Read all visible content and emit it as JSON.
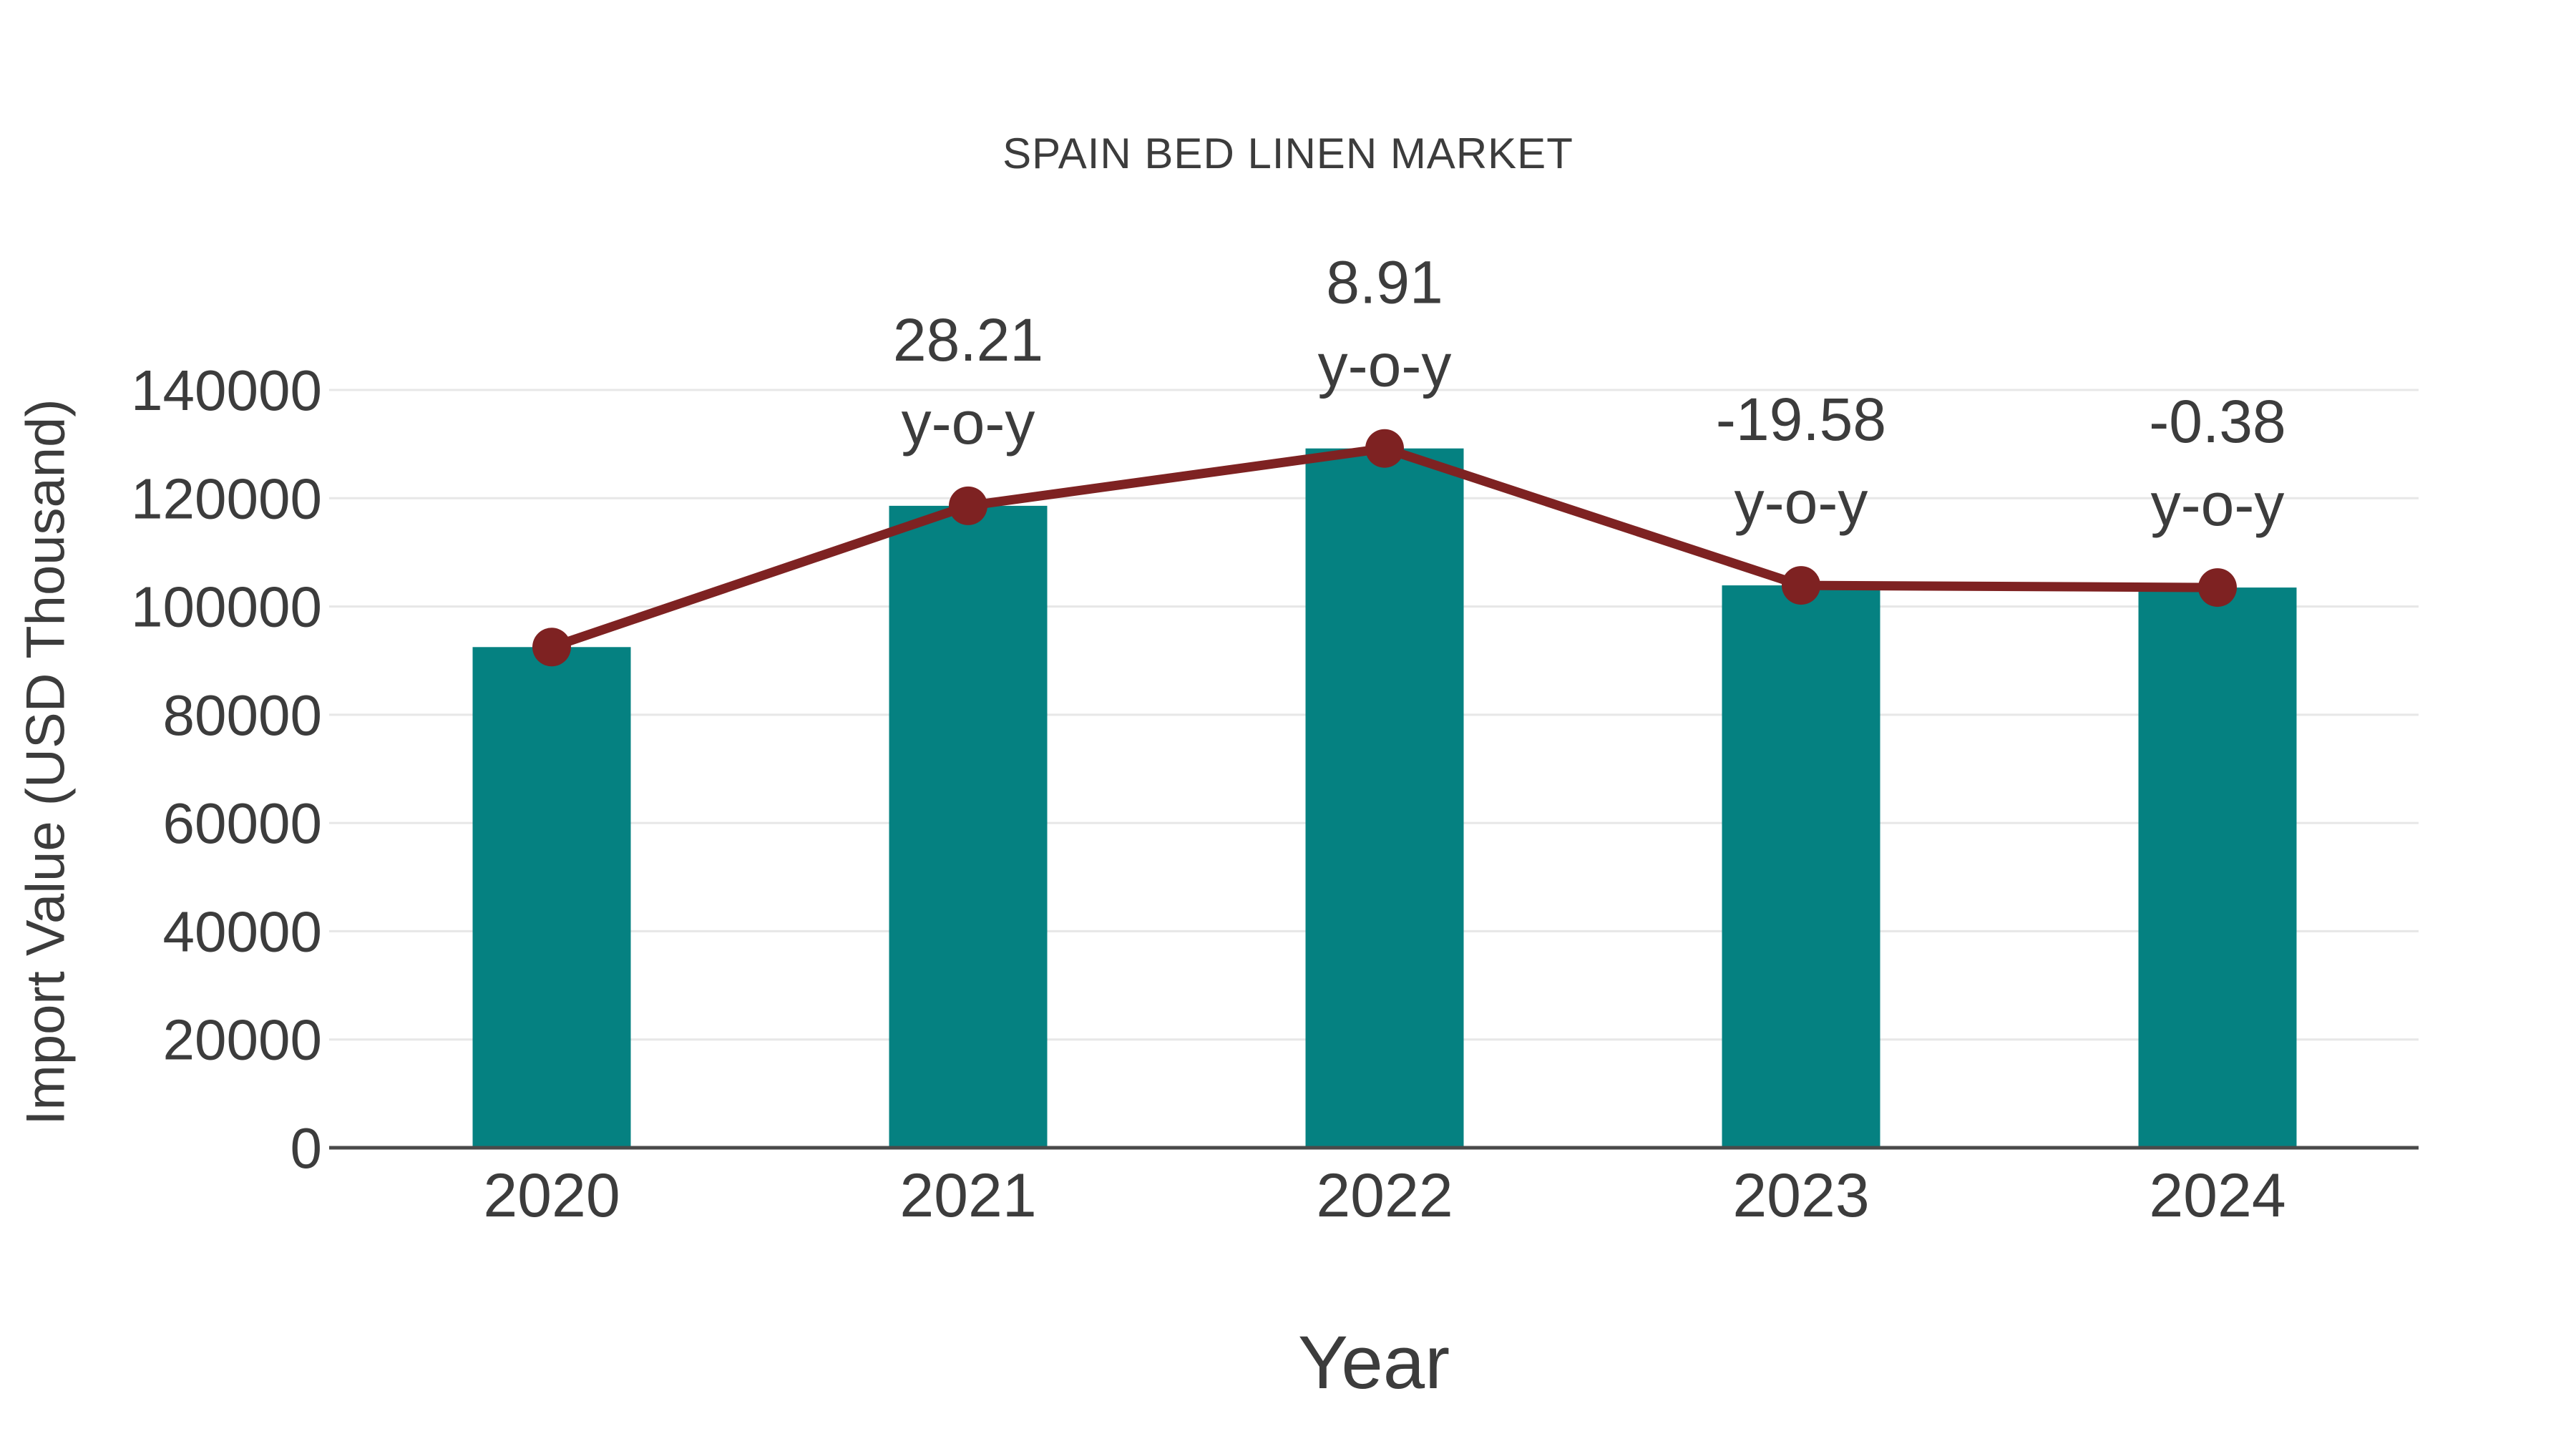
{
  "chart_data": {
    "type": "bar",
    "title": "SPAIN BED LINEN MARKET",
    "xlabel": "Year",
    "ylabel": "Import Value (USD Thousand)",
    "categories": [
      "2020",
      "2021",
      "2022",
      "2023",
      "2024"
    ],
    "series": [
      {
        "name": "Import Value bars",
        "type": "bar",
        "values": [
          92500,
          118600,
          129200,
          103900,
          103500
        ]
      },
      {
        "name": "Import Value trend line with markers",
        "type": "line",
        "values": [
          92500,
          118600,
          129200,
          103900,
          103500
        ]
      }
    ],
    "annotations": [
      {
        "category": "2021",
        "value_label": "28.21",
        "unit_label": "y-o-y"
      },
      {
        "category": "2022",
        "value_label": "8.91",
        "unit_label": "y-o-y"
      },
      {
        "category": "2023",
        "value_label": "-19.58",
        "unit_label": "y-o-y"
      },
      {
        "category": "2024",
        "value_label": "-0.38",
        "unit_label": "y-o-y"
      }
    ],
    "y_ticks": [
      0,
      20000,
      40000,
      60000,
      80000,
      100000,
      120000,
      140000
    ],
    "y_tick_labels": [
      "0",
      "20000",
      "40000",
      "60000",
      "80000",
      "100000",
      "120000",
      "140000"
    ],
    "ylim": [
      0,
      140000
    ],
    "grid": "horizontal",
    "legend_position": "none",
    "colors": {
      "bar": "#058181",
      "line": "#7E2222",
      "marker": "#7E2222",
      "text": "#3C3C3C",
      "gridline": "#E7E7E7",
      "axis_line": "#4A4A4A",
      "background": "#FFFFFF"
    }
  }
}
